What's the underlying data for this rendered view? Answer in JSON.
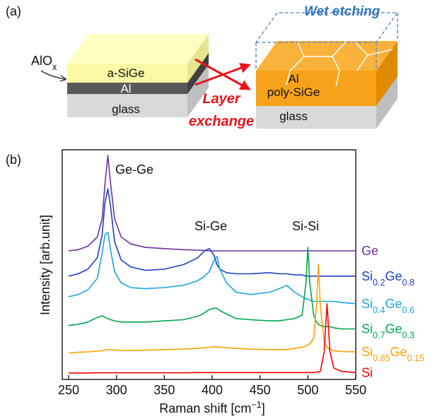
{
  "panel_a": {
    "label": "(a)",
    "left_stack": {
      "oxide": "AlOx",
      "top": "a-SiGe",
      "middle": "Al",
      "bottom": "glass"
    },
    "process": [
      "Layer",
      "exchange"
    ],
    "etch": "Wet etching",
    "right_stack": {
      "top": "Al",
      "middle": "poly-SiGe",
      "bottom": "glass"
    }
  },
  "chart_data": {
    "type": "line",
    "panel_label": "(b)",
    "x_label": "Raman shift [cm−1]",
    "y_label": "Intensity [arb.unit]",
    "xlim": [
      250,
      550
    ],
    "xticks": [
      250,
      300,
      350,
      400,
      450,
      500,
      550
    ],
    "ylim": [
      0,
      100
    ],
    "annotations": [
      "Ge-Ge",
      "Si-Ge",
      "Si-Si"
    ],
    "x": [
      250,
      260,
      270,
      280,
      285,
      288,
      291,
      294,
      298,
      305,
      315,
      330,
      350,
      370,
      385,
      392,
      397,
      402,
      405,
      408,
      415,
      425,
      440,
      460,
      470,
      478,
      486,
      494,
      498,
      500,
      502,
      506,
      509,
      511,
      513,
      517,
      520,
      523,
      527,
      535,
      550
    ],
    "series": [
      {
        "name": "Ge",
        "color": "#7030a0",
        "values": [
          56,
          56.5,
          58,
          62,
          70,
          85,
          97.5,
          85,
          70,
          62,
          59,
          57.5,
          57,
          56.5,
          56.3,
          56.2,
          56,
          56,
          56,
          56,
          56,
          56,
          56,
          56,
          56,
          56,
          56,
          56,
          56,
          56,
          56,
          56,
          56,
          56,
          56,
          56,
          56,
          56,
          56,
          56,
          56
        ]
      },
      {
        "name": "Si0.2Ge0.8",
        "color": "#1f3fc4",
        "values": [
          45,
          46,
          48,
          53,
          63,
          77,
          83,
          75,
          60,
          52,
          49,
          47.5,
          48,
          50,
          53,
          56,
          57,
          54,
          50,
          48,
          46.5,
          46,
          46,
          46.5,
          46,
          46,
          45.5,
          45.5,
          45,
          45,
          45,
          45,
          45,
          45,
          45,
          45,
          45,
          45,
          45,
          45,
          45
        ]
      },
      {
        "name": "Si0.4Ge0.6",
        "color": "#1aa6e0",
        "values": [
          36,
          37,
          39,
          44,
          55,
          63,
          64,
          56,
          47,
          42,
          40,
          39.5,
          40,
          41,
          43,
          45,
          47,
          52,
          53.5,
          48,
          42,
          38,
          37,
          38,
          39.5,
          41,
          38,
          36,
          35,
          35,
          34.5,
          34,
          34,
          34,
          34,
          34,
          34,
          34,
          34,
          33.5,
          33
        ]
      },
      {
        "name": "Si0.7Ge0.3",
        "color": "#00a650",
        "values": [
          23.5,
          24,
          25,
          27,
          27.7,
          27,
          26.5,
          26,
          25.5,
          25,
          25,
          25,
          25.5,
          26,
          27.5,
          29,
          30.5,
          31,
          31,
          30,
          28.5,
          26.5,
          26,
          25.5,
          25.5,
          26,
          26.5,
          28,
          42,
          57.5,
          42,
          28,
          25,
          24,
          23.5,
          23,
          23,
          23,
          22.5,
          22,
          22
        ]
      },
      {
        "name": "Si0.85Ge0.15",
        "color": "#ffa000",
        "values": [
          11.5,
          11.8,
          12,
          12.3,
          12.5,
          12.8,
          13,
          13,
          12.8,
          12.6,
          12.6,
          12.7,
          13,
          13.2,
          13.5,
          13.8,
          14,
          14.2,
          14.2,
          14,
          13.8,
          13.5,
          13.2,
          13,
          13,
          13,
          13.5,
          14,
          14.5,
          15,
          15.5,
          18,
          32,
          50,
          32,
          17,
          14,
          13,
          12.5,
          12.2,
          12
        ]
      },
      {
        "name": "Si",
        "color": "#ff0000",
        "values": [
          2.8,
          2.8,
          2.8,
          2.9,
          2.9,
          2.9,
          2.9,
          2.9,
          2.9,
          2.9,
          2.9,
          2.9,
          2.9,
          2.9,
          3,
          3,
          3,
          3,
          3,
          3,
          3,
          3,
          3,
          3,
          3,
          3,
          3,
          3,
          3,
          3,
          3,
          3,
          3.2,
          3.3,
          3.5,
          12,
          33,
          12,
          5,
          3.5,
          3
        ]
      }
    ]
  }
}
